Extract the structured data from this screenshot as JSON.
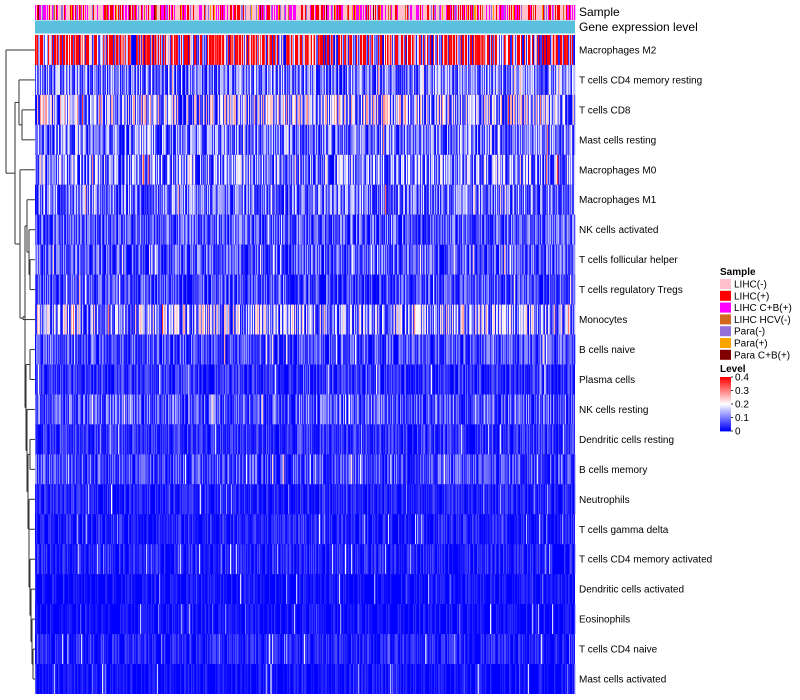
{
  "chart_data": {
    "type": "heatmap",
    "title": "",
    "annotation_tracks": [
      "Sample",
      "Gene expression level"
    ],
    "annotation_track_colors": {
      "Gene expression level": "#5bc0de"
    },
    "rows": [
      "Macrophages M2",
      "T cells CD4 memory resting",
      "T cells CD8",
      "Mast cells resting",
      "Macrophages M0",
      "Macrophages M1",
      "NK cells activated",
      "T cells follicular helper",
      "T cells regulatory  Tregs",
      "Monocytes",
      "B cells naive",
      "Plasma cells",
      "NK cells resting",
      "Dendritic cells resting",
      "B cells memory",
      "Neutrophils",
      "T cells gamma delta",
      "T cells CD4 memory activated",
      "Dendritic cells activated",
      "Eosinophils",
      "T cells CD4 naive",
      "Mast cells activated"
    ],
    "row_mean_level": [
      0.3,
      0.08,
      0.13,
      0.08,
      0.1,
      0.08,
      0.06,
      0.06,
      0.05,
      0.12,
      0.05,
      0.03,
      0.06,
      0.03,
      0.05,
      0.02,
      0.02,
      0.02,
      0.01,
      0.01,
      0.02,
      0.01
    ],
    "n_samples": 540,
    "legend_sample": {
      "title": "Sample",
      "items": [
        {
          "label": "LIHC(-)",
          "color": "#ffc0cb"
        },
        {
          "label": "LIHC(+)",
          "color": "#ff0000"
        },
        {
          "label": "LIHC C+B(+)",
          "color": "#ff00ff"
        },
        {
          "label": "LIHC HCV(-)",
          "color": "#d2691e"
        },
        {
          "label": "Para(-)",
          "color": "#9370db"
        },
        {
          "label": "Para(+)",
          "color": "#ffa500"
        },
        {
          "label": "Para C+B(+)",
          "color": "#800000"
        }
      ]
    },
    "legend_level": {
      "title": "Level",
      "ticks": [
        {
          "value": 0.4,
          "label": "0.4"
        },
        {
          "value": 0.3,
          "label": "0.3"
        },
        {
          "value": 0.2,
          "label": "0.2"
        },
        {
          "value": 0.1,
          "label": "0.1"
        },
        {
          "value": 0,
          "label": "0"
        }
      ],
      "range": [
        0,
        0.4
      ],
      "colors": [
        "#0000ff",
        "#ffffff",
        "#ff0000"
      ]
    }
  }
}
